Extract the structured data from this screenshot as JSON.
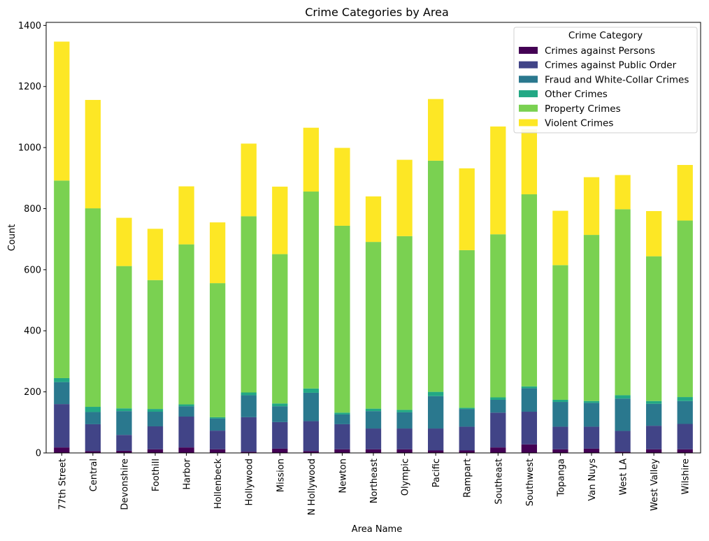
{
  "chart_data": {
    "type": "bar",
    "stacked": true,
    "title": "Crime Categories by Area",
    "xlabel": "Area Name",
    "ylabel": "Count",
    "ylim": [
      0,
      1410
    ],
    "yticks": [
      0,
      200,
      400,
      600,
      800,
      1000,
      1200,
      1400
    ],
    "categories": [
      "77th Street",
      "Central",
      "Devonshire",
      "Foothill",
      "Harbor",
      "Hollenbeck",
      "Hollywood",
      "Mission",
      "N Hollywood",
      "Newton",
      "Northeast",
      "Olympic",
      "Pacific",
      "Rampart",
      "Southeast",
      "Southwest",
      "Topanga",
      "Van Nuys",
      "West LA",
      "West Valley",
      "Wilshire"
    ],
    "legend": {
      "title": "Crime Category",
      "position": "top-right"
    },
    "series": [
      {
        "name": "Crimes against Persons",
        "color": "#440154",
        "values": [
          18,
          6,
          7,
          12,
          18,
          12,
          4,
          14,
          6,
          12,
          12,
          12,
          8,
          8,
          18,
          28,
          12,
          14,
          4,
          12,
          12
        ]
      },
      {
        "name": "Crimes against Public Order",
        "color": "#414487",
        "values": [
          142,
          88,
          52,
          75,
          101,
          61,
          113,
          87,
          98,
          82,
          68,
          68,
          72,
          78,
          114,
          107,
          74,
          72,
          68,
          77,
          83
        ]
      },
      {
        "name": "Fraud and White-Collar Crimes",
        "color": "#2a788e",
        "values": [
          72,
          40,
          78,
          48,
          34,
          40,
          72,
          52,
          93,
          32,
          57,
          53,
          106,
          58,
          42,
          77,
          81,
          78,
          106,
          72,
          75
        ]
      },
      {
        "name": "Other Crimes",
        "color": "#22a884",
        "values": [
          13,
          17,
          9,
          9,
          6,
          4,
          9,
          9,
          14,
          6,
          8,
          8,
          14,
          4,
          8,
          6,
          7,
          6,
          11,
          9,
          13
        ]
      },
      {
        "name": "Property Crimes",
        "color": "#7ad151",
        "values": [
          647,
          650,
          466,
          422,
          524,
          439,
          577,
          489,
          645,
          612,
          546,
          569,
          757,
          516,
          534,
          629,
          441,
          544,
          609,
          474,
          578
        ]
      },
      {
        "name": "Violent Crimes",
        "color": "#fde725",
        "values": [
          455,
          355,
          158,
          168,
          190,
          199,
          238,
          221,
          209,
          255,
          149,
          250,
          202,
          268,
          353,
          213,
          178,
          189,
          112,
          148,
          182
        ]
      }
    ]
  }
}
